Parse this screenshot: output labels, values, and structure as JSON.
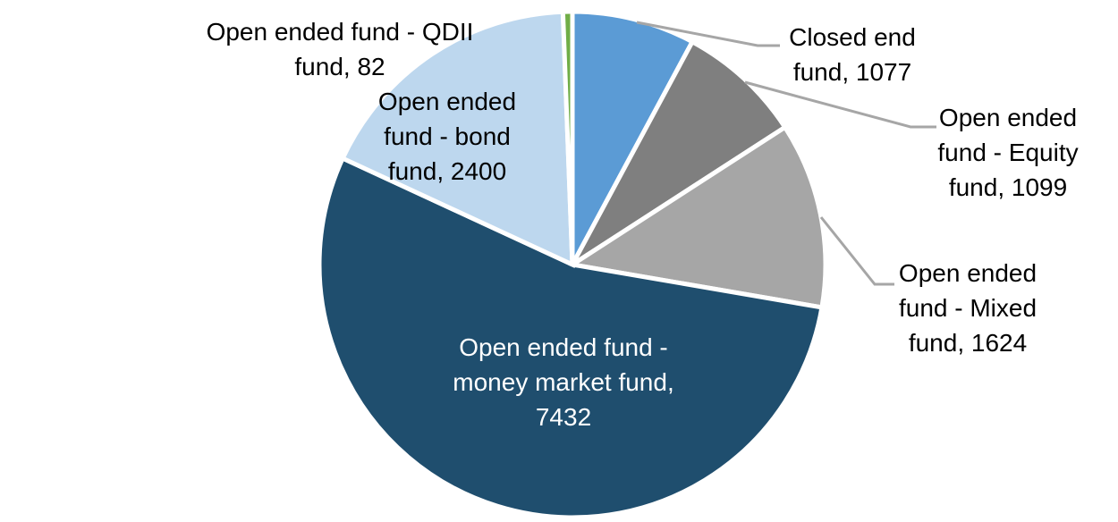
{
  "chart_data": {
    "type": "pie",
    "title": "",
    "legend": "none",
    "background_color": "#FFFFFF",
    "leader_line_color": "#A6A6A6",
    "start_angle_deg": 0,
    "direction": "clockwise",
    "slices": [
      {
        "id": "closed-end-fund",
        "label": "Closed end fund",
        "value": 1077,
        "color": "#5B9BD5",
        "label_color": "#000000",
        "label_lines": [
          "Closed end",
          "fund, 1077"
        ]
      },
      {
        "id": "open-ended-equity-fund",
        "label": "Open ended fund - Equity fund",
        "value": 1099,
        "color": "#7F7F7F",
        "label_color": "#000000",
        "label_lines": [
          "Open ended",
          "fund - Equity",
          "fund, 1099"
        ]
      },
      {
        "id": "open-ended-mixed-fund",
        "label": "Open ended fund - Mixed fund",
        "value": 1624,
        "color": "#A6A6A6",
        "label_color": "#000000",
        "label_lines": [
          "Open ended",
          "fund - Mixed",
          "fund, 1624"
        ]
      },
      {
        "id": "open-ended-money-market-fund",
        "label": "Open ended fund - money market fund",
        "value": 7432,
        "color": "#1F4E6E",
        "label_color": "#FFFFFF",
        "label_lines": [
          "Open ended fund -",
          "money market fund,",
          "7432"
        ]
      },
      {
        "id": "open-ended-bond-fund",
        "label": "Open ended fund - bond fund",
        "value": 2400,
        "color": "#BDD7EE",
        "label_color": "#000000",
        "label_lines": [
          "Open ended",
          "fund - bond",
          "fund, 2400"
        ]
      },
      {
        "id": "open-ended-qdii-fund",
        "label": "Open ended fund - QDII fund",
        "value": 82,
        "color": "#70AD47",
        "label_color": "#000000",
        "label_lines": [
          "Open ended fund - QDII",
          "fund, 82"
        ]
      }
    ]
  }
}
